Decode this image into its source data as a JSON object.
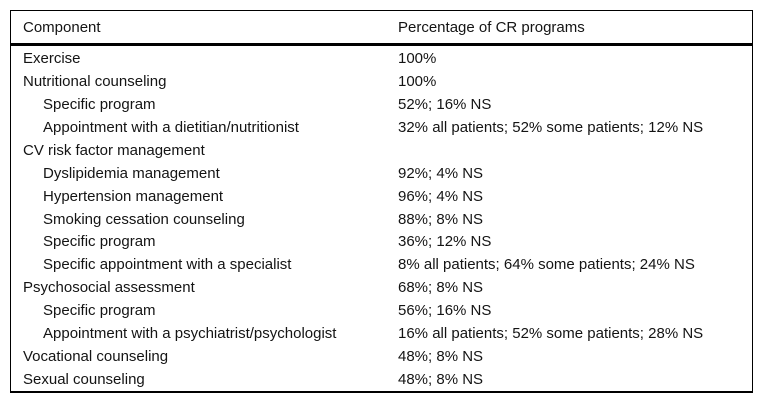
{
  "table": {
    "columns": [
      "Component",
      "Percentage of CR programs"
    ],
    "rows": [
      {
        "component": "Exercise",
        "value": "100%",
        "indent": false
      },
      {
        "component": "Nutritional counseling",
        "value": "100%",
        "indent": false
      },
      {
        "component": "Specific program",
        "value": "52%; 16% NS",
        "indent": true
      },
      {
        "component": "Appointment with a dietitian/nutritionist",
        "value": "32% all patients; 52% some patients; 12% NS",
        "indent": true
      },
      {
        "component": "CV risk factor management",
        "value": "",
        "indent": false
      },
      {
        "component": "Dyslipidemia management",
        "value": "92%; 4% NS",
        "indent": true
      },
      {
        "component": "Hypertension management",
        "value": "96%; 4% NS",
        "indent": true
      },
      {
        "component": "Smoking cessation counseling",
        "value": "88%; 8% NS",
        "indent": true
      },
      {
        "component": "Specific program",
        "value": "36%; 12% NS",
        "indent": true
      },
      {
        "component": "Specific appointment with a specialist",
        "value": "8% all patients; 64% some patients; 24% NS",
        "indent": true
      },
      {
        "component": "Psychosocial assessment",
        "value": "68%; 8% NS",
        "indent": false
      },
      {
        "component": "Specific program",
        "value": "56%; 16% NS",
        "indent": true
      },
      {
        "component": "Appointment with a psychiatrist/psychologist",
        "value": "16% all patients; 52% some patients; 28% NS",
        "indent": true
      },
      {
        "component": "Vocational counseling",
        "value": "48%; 8% NS",
        "indent": false
      },
      {
        "component": "Sexual counseling",
        "value": "48%; 8% NS",
        "indent": false
      }
    ],
    "colors": {
      "border": "#000000",
      "text": "#141414",
      "background": "#ffffff"
    }
  }
}
